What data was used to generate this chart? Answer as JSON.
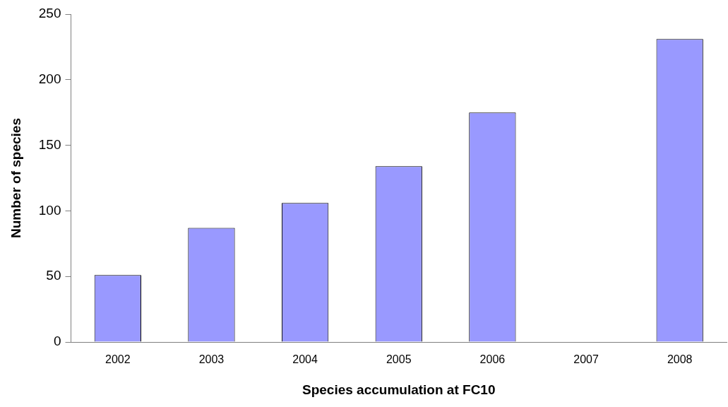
{
  "chart_data": {
    "type": "bar",
    "xlabel": "Species accumulation at FC10",
    "ylabel": "Number of species",
    "categories": [
      "2002",
      "2003",
      "2004",
      "2005",
      "2006",
      "2007",
      "2008"
    ],
    "values": [
      51,
      87,
      106,
      134,
      175,
      null,
      231
    ],
    "color": "#9999ff",
    "ylim": [
      0,
      250
    ],
    "yticks": [
      0,
      50,
      100,
      150,
      200,
      250
    ],
    "grid": false,
    "legend": false
  }
}
